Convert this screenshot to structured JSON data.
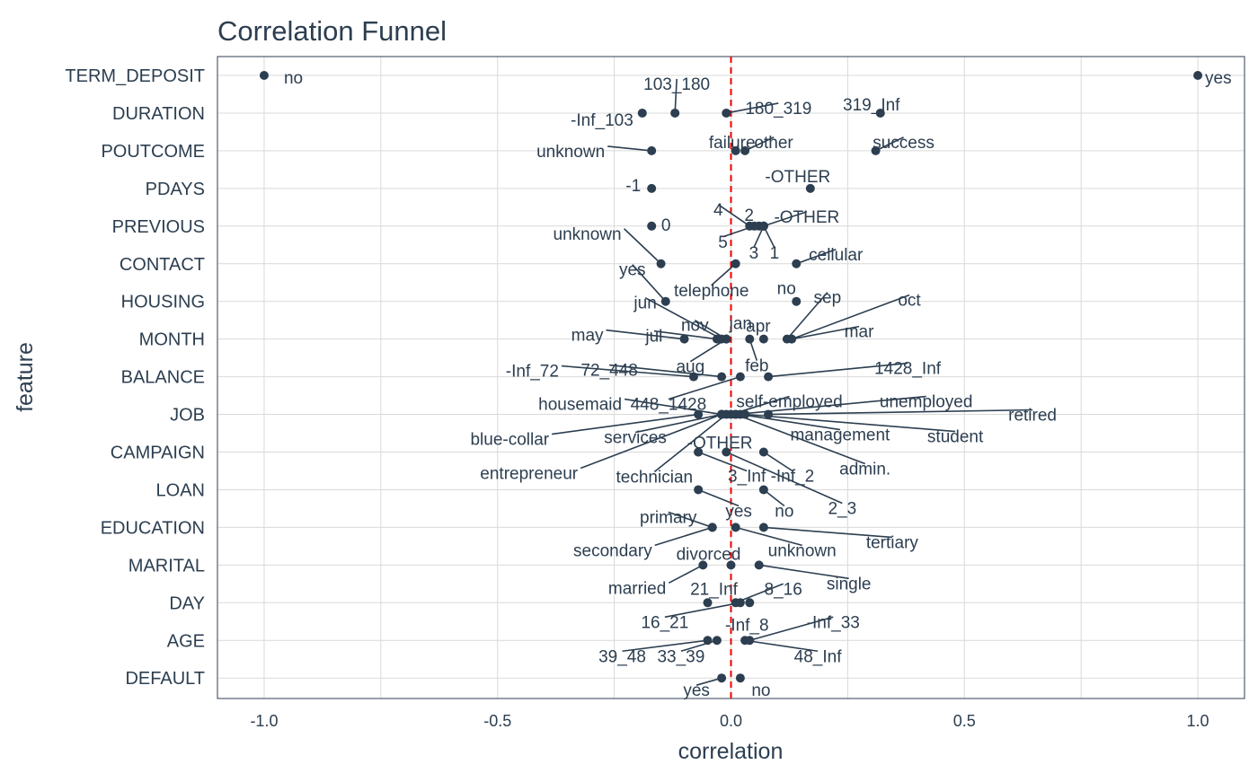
{
  "chart_data": {
    "type": "scatter",
    "title": "Correlation Funnel",
    "xlabel": "correlation",
    "ylabel": "feature",
    "xlim": [
      -1.1,
      1.1
    ],
    "x_ticks": [
      {
        "value": -1.0,
        "label": "-1.0"
      },
      {
        "value": -0.5,
        "label": "-0.5"
      },
      {
        "value": 0.0,
        "label": "0.0"
      },
      {
        "value": 0.5,
        "label": "0.5"
      },
      {
        "value": 1.0,
        "label": "1.0"
      }
    ],
    "grid": true,
    "reference_line": {
      "x": 0,
      "style": "dashed",
      "color": "#ee0000"
    },
    "point_color": "#2c3e50",
    "features": [
      "TERM_DEPOSIT",
      "DURATION",
      "POUTCOME",
      "PDAYS",
      "PREVIOUS",
      "CONTACT",
      "HOUSING",
      "MONTH",
      "BALANCE",
      "JOB",
      "CAMPAIGN",
      "LOAN",
      "EDUCATION",
      "MARITAL",
      "DAY",
      "AGE",
      "DEFAULT"
    ],
    "points": [
      {
        "feature": "TERM_DEPOSIT",
        "level": "no",
        "x": -1.0
      },
      {
        "feature": "TERM_DEPOSIT",
        "level": "yes",
        "x": 1.0
      },
      {
        "feature": "DURATION",
        "level": "-Inf_103",
        "x": -0.19
      },
      {
        "feature": "DURATION",
        "level": "103_180",
        "x": -0.12
      },
      {
        "feature": "DURATION",
        "level": "180_319",
        "x": -0.01
      },
      {
        "feature": "DURATION",
        "level": "319_Inf",
        "x": 0.32
      },
      {
        "feature": "POUTCOME",
        "level": "unknown",
        "x": -0.17
      },
      {
        "feature": "POUTCOME",
        "level": "failure",
        "x": 0.01
      },
      {
        "feature": "POUTCOME",
        "level": "other",
        "x": 0.03
      },
      {
        "feature": "POUTCOME",
        "level": "success",
        "x": 0.31
      },
      {
        "feature": "PDAYS",
        "level": "-1",
        "x": -0.17
      },
      {
        "feature": "PDAYS",
        "level": "-OTHER",
        "x": 0.17
      },
      {
        "feature": "PREVIOUS",
        "level": "0",
        "x": -0.17
      },
      {
        "feature": "PREVIOUS",
        "level": "4",
        "x": 0.04
      },
      {
        "feature": "PREVIOUS",
        "level": "5",
        "x": 0.05
      },
      {
        "feature": "PREVIOUS",
        "level": "2",
        "x": 0.06
      },
      {
        "feature": "PREVIOUS",
        "level": "-OTHER",
        "x": 0.07
      },
      {
        "feature": "PREVIOUS",
        "level": "3",
        "x": 0.07
      },
      {
        "feature": "PREVIOUS",
        "level": "1",
        "x": 0.07
      },
      {
        "feature": "CONTACT",
        "level": "unknown",
        "x": -0.15
      },
      {
        "feature": "CONTACT",
        "level": "telephone",
        "x": 0.01
      },
      {
        "feature": "CONTACT",
        "level": "cellular",
        "x": 0.14
      },
      {
        "feature": "HOUSING",
        "level": "yes",
        "x": -0.14
      },
      {
        "feature": "HOUSING",
        "level": "no",
        "x": 0.14
      },
      {
        "feature": "MONTH",
        "level": "may",
        "x": -0.1
      },
      {
        "feature": "MONTH",
        "level": "jul",
        "x": -0.03
      },
      {
        "feature": "MONTH",
        "level": "jun",
        "x": -0.02
      },
      {
        "feature": "MONTH",
        "level": "nov",
        "x": -0.01
      },
      {
        "feature": "MONTH",
        "level": "jan",
        "x": -0.01
      },
      {
        "feature": "MONTH",
        "level": "aug",
        "x": -0.01
      },
      {
        "feature": "MONTH",
        "level": "feb",
        "x": 0.04
      },
      {
        "feature": "MONTH",
        "level": "apr",
        "x": 0.07
      },
      {
        "feature": "MONTH",
        "level": "sep",
        "x": 0.12
      },
      {
        "feature": "MONTH",
        "level": "oct",
        "x": 0.13
      },
      {
        "feature": "MONTH",
        "level": "mar",
        "x": 0.13
      },
      {
        "feature": "BALANCE",
        "level": "-Inf_72",
        "x": -0.08
      },
      {
        "feature": "BALANCE",
        "level": "72_448",
        "x": -0.02
      },
      {
        "feature": "BALANCE",
        "level": "448_1428",
        "x": 0.02
      },
      {
        "feature": "BALANCE",
        "level": "1428_Inf",
        "x": 0.08
      },
      {
        "feature": "JOB",
        "level": "blue-collar",
        "x": -0.07
      },
      {
        "feature": "JOB",
        "level": "housemaid",
        "x": -0.02
      },
      {
        "feature": "JOB",
        "level": "services",
        "x": -0.02
      },
      {
        "feature": "JOB",
        "level": "entrepreneur",
        "x": -0.02
      },
      {
        "feature": "JOB",
        "level": "technician",
        "x": -0.01
      },
      {
        "feature": "JOB",
        "level": "self-employed",
        "x": 0.0
      },
      {
        "feature": "JOB",
        "level": "unemployed",
        "x": 0.01
      },
      {
        "feature": "JOB",
        "level": "management",
        "x": 0.02
      },
      {
        "feature": "JOB",
        "level": "admin.",
        "x": 0.01
      },
      {
        "feature": "JOB",
        "level": "student",
        "x": 0.03
      },
      {
        "feature": "JOB",
        "level": "retired",
        "x": 0.08
      },
      {
        "feature": "CAMPAIGN",
        "level": "-OTHER",
        "x": -0.07
      },
      {
        "feature": "CAMPAIGN",
        "level": "3_Inf",
        "x": -0.07
      },
      {
        "feature": "CAMPAIGN",
        "level": "2_3",
        "x": -0.01
      },
      {
        "feature": "CAMPAIGN",
        "level": "-Inf_2",
        "x": 0.07
      },
      {
        "feature": "LOAN",
        "level": "yes",
        "x": -0.07
      },
      {
        "feature": "LOAN",
        "level": "no",
        "x": 0.07
      },
      {
        "feature": "EDUCATION",
        "level": "secondary",
        "x": -0.04
      },
      {
        "feature": "EDUCATION",
        "level": "primary",
        "x": -0.04
      },
      {
        "feature": "EDUCATION",
        "level": "unknown",
        "x": 0.01
      },
      {
        "feature": "EDUCATION",
        "level": "tertiary",
        "x": 0.07
      },
      {
        "feature": "MARITAL",
        "level": "married",
        "x": -0.06
      },
      {
        "feature": "MARITAL",
        "level": "divorced",
        "x": 0.0
      },
      {
        "feature": "MARITAL",
        "level": "single",
        "x": 0.06
      },
      {
        "feature": "DAY",
        "level": "21_Inf",
        "x": -0.05
      },
      {
        "feature": "DAY",
        "level": "8_16",
        "x": 0.01
      },
      {
        "feature": "DAY",
        "level": "16_21",
        "x": 0.02
      },
      {
        "feature": "DAY",
        "level": "-Inf_8",
        "x": 0.04
      },
      {
        "feature": "AGE",
        "level": "39_48",
        "x": -0.05
      },
      {
        "feature": "AGE",
        "level": "33_39",
        "x": -0.03
      },
      {
        "feature": "AGE",
        "level": "48_Inf",
        "x": 0.03
      },
      {
        "feature": "AGE",
        "level": "-Inf_33",
        "x": 0.04
      },
      {
        "feature": "DEFAULT",
        "level": "yes",
        "x": -0.02
      },
      {
        "feature": "DEFAULT",
        "level": "no",
        "x": 0.02
      }
    ]
  }
}
